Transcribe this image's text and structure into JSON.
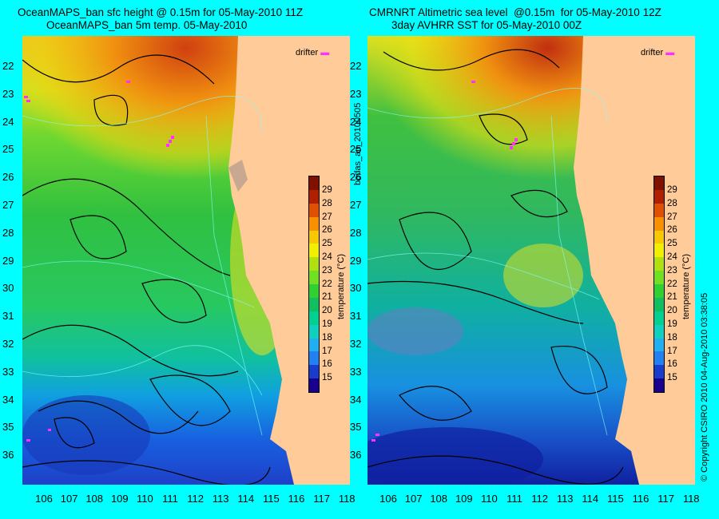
{
  "left": {
    "title1": "OceanMAPS_ban sfc height @ 0.15m for 05-May-2010 11Z",
    "title2": "OceanMAPS_ban 5m temp. 05-May-2010"
  },
  "right": {
    "title1": "CMRNRT Altimetric sea level  @0.15m  for 05-May-2010 12Z",
    "title2": "3day AVHRR SST for 05-May-2010 00Z"
  },
  "latitudes": [
    "22",
    "23",
    "24",
    "25",
    "26",
    "27",
    "28",
    "29",
    "30",
    "31",
    "32",
    "33",
    "34",
    "35",
    "36"
  ],
  "longitudes": [
    "106",
    "107",
    "108",
    "109",
    "110",
    "111",
    "112",
    "113",
    "114",
    "115",
    "116",
    "117",
    "118"
  ],
  "colorbar": {
    "labels": [
      "29",
      "28",
      "27",
      "26",
      "25",
      "24",
      "23",
      "22",
      "21",
      "20",
      "19",
      "18",
      "17",
      "16",
      "15"
    ],
    "title": "temperature (°C)",
    "colors": [
      "#1a0090",
      "#1a3ccc",
      "#2280f0",
      "#20b0f0",
      "#10d0c0",
      "#00d090",
      "#10c060",
      "#30d030",
      "#70e020",
      "#b0e010",
      "#f0f000",
      "#f8c800",
      "#f89000",
      "#e05000",
      "#b02000",
      "#801000"
    ]
  },
  "drifter_label": "drifter",
  "side_text": "bodas_an_20100505",
  "copyright": "© Copyright CSIRO 2010    04-Aug-2010 03:38:05"
}
